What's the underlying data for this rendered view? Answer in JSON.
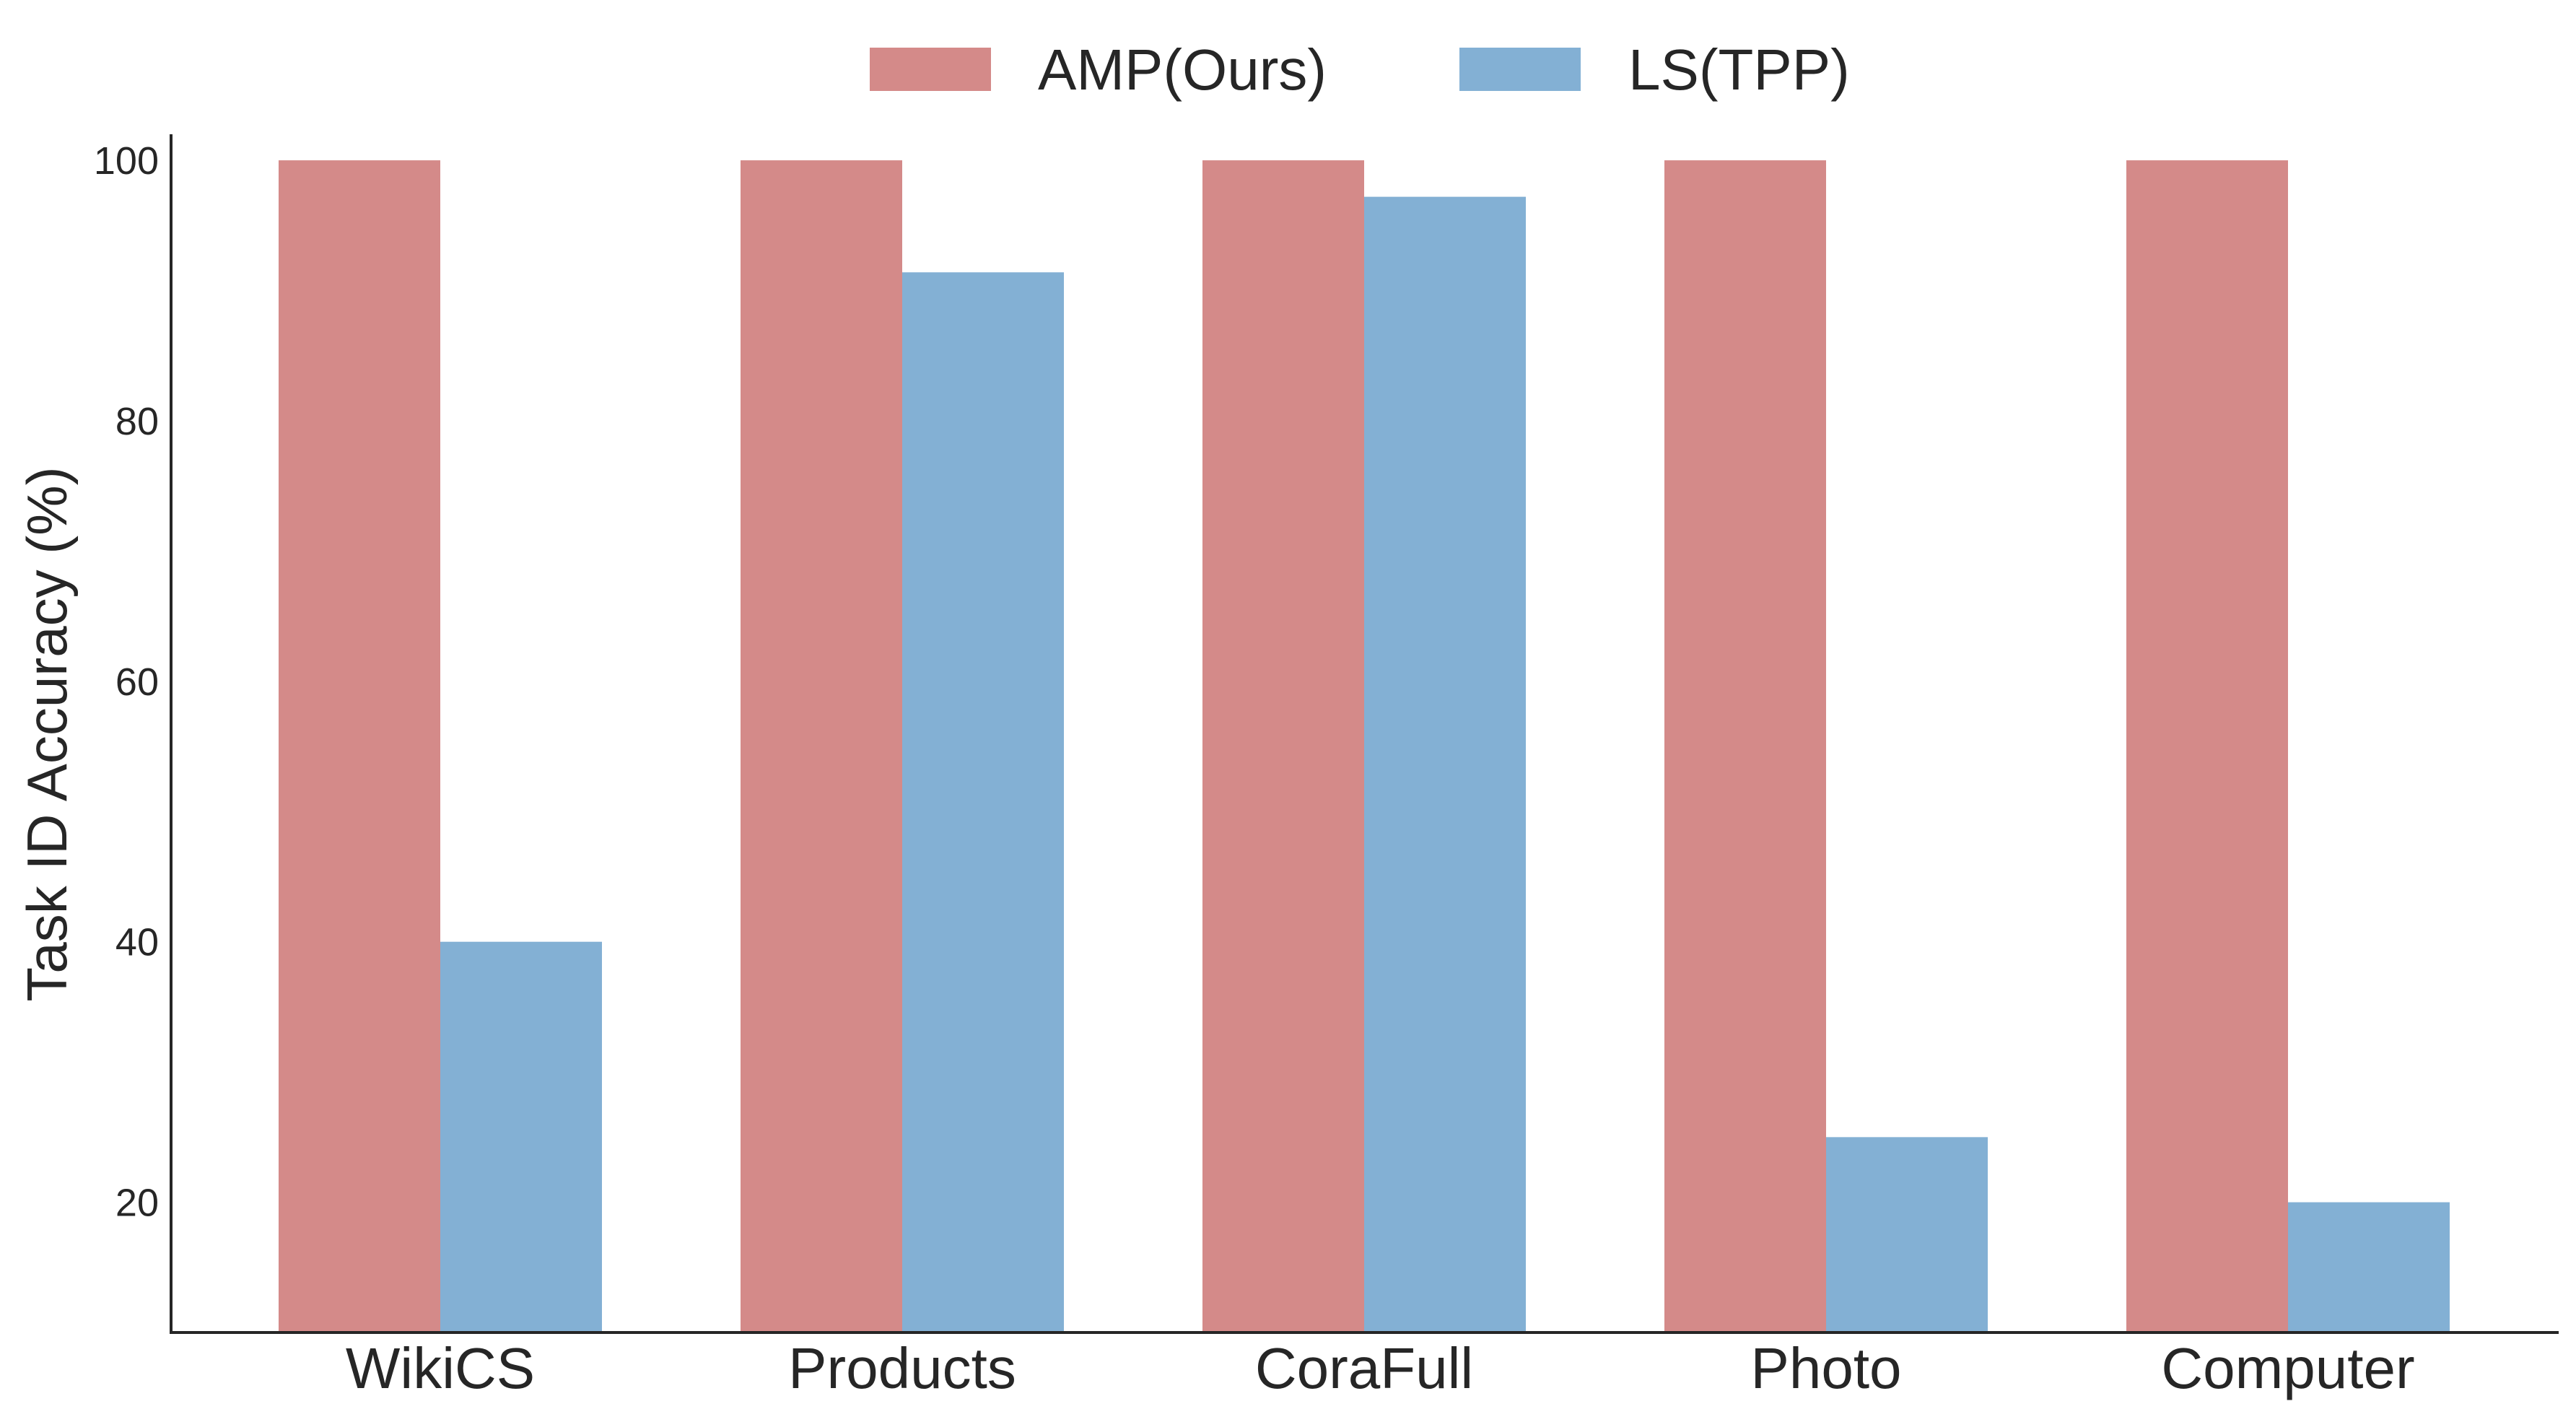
{
  "chart_data": {
    "type": "bar",
    "title": "",
    "xlabel": "",
    "ylabel": "Task ID Accuracy (%)",
    "categories": [
      "WikiCS",
      "Products",
      "CoraFull",
      "Photo",
      "Computer"
    ],
    "series": [
      {
        "name": "AMP(Ours)",
        "values": [
          100,
          100,
          100,
          100,
          100
        ],
        "color": "#d48a89"
      },
      {
        "name": "LS(TPP)",
        "values": [
          40,
          91.4,
          97.2,
          25,
          20
        ],
        "color": "#83b0d4"
      }
    ],
    "yticks": [
      "20",
      "40",
      "60",
      "80",
      "100"
    ],
    "ylim": [
      10,
      102
    ],
    "grid": false,
    "legend_position": "top-center"
  }
}
